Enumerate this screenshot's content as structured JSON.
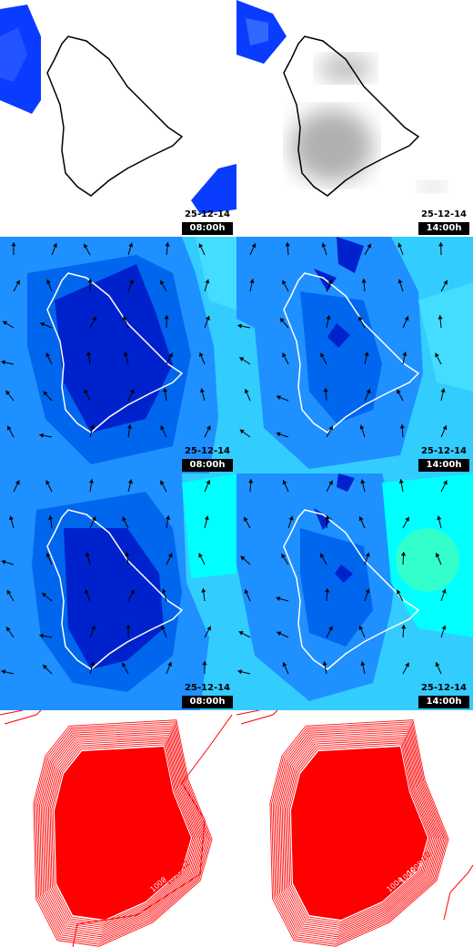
{
  "panels": [
    {
      "id": "r1c1",
      "row": "precipitation",
      "date": "25-12-14",
      "time": "08:00h"
    },
    {
      "id": "r1c2",
      "row": "cloud-cover",
      "date": "25-12-14",
      "time": "14:00h"
    },
    {
      "id": "r2c1",
      "row": "wind",
      "date": "25-12-14",
      "time": "08:00h"
    },
    {
      "id": "r2c2",
      "row": "wind",
      "date": "25-12-14",
      "time": "14:00h"
    },
    {
      "id": "r3c1",
      "row": "wind",
      "date": "25-12-14",
      "time": "08:00h"
    },
    {
      "id": "r3c2",
      "row": "wind",
      "date": "25-12-14",
      "time": "14:00h"
    },
    {
      "id": "r4c1",
      "row": "pressure",
      "date": "",
      "time": ""
    },
    {
      "id": "r4c2",
      "row": "pressure",
      "date": "",
      "time": ""
    }
  ],
  "pressure_labels": {
    "left": [
      "1008",
      "1010",
      "1012",
      "1016"
    ],
    "right": [
      "1004",
      "1006",
      "1008",
      "1010"
    ]
  },
  "colors": {
    "sea_light": "#33ccff",
    "mid_blue": "#1e90ff",
    "blue": "#0055ee",
    "dark_blue": "#0000cc",
    "cyan": "#00ffff",
    "green": "#33ffcc",
    "isobar": "#ff0000",
    "coast": "#ffffff"
  }
}
